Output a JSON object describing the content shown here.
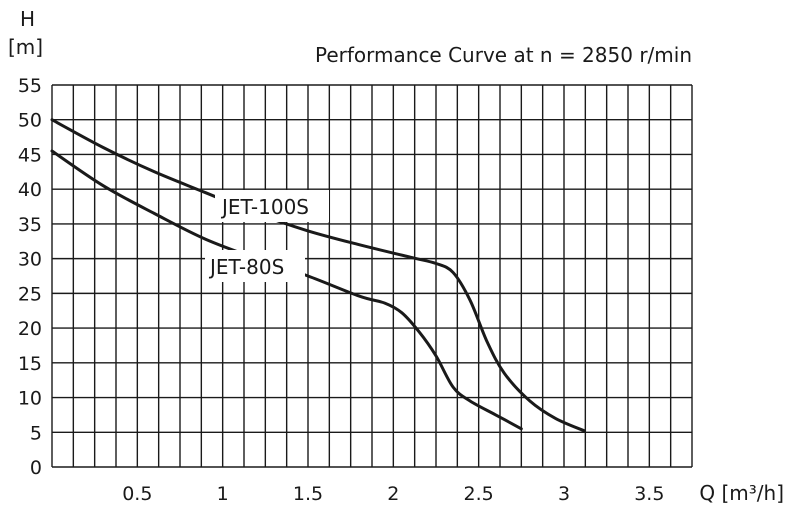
{
  "chart_data": {
    "type": "line",
    "title": "Performance Curve at n = 2850 r/min",
    "ylabel": "H",
    "yunit": "[m]",
    "xlabel": "Q [m³/h]",
    "xlim": [
      0,
      3.75
    ],
    "ylim": [
      0,
      55
    ],
    "xticks": [
      0.5,
      1,
      1.5,
      2,
      2.5,
      3,
      3.5
    ],
    "xtick_labels": [
      "0.5",
      "1",
      "1.5",
      "2",
      "2.5",
      "3",
      "3.5"
    ],
    "yticks": [
      0,
      5,
      10,
      15,
      20,
      25,
      30,
      35,
      40,
      45,
      50,
      55
    ],
    "ytick_labels": [
      "0",
      "5",
      "10",
      "15",
      "20",
      "25",
      "30",
      "35",
      "40",
      "45",
      "50",
      "55"
    ],
    "grid": true,
    "series": [
      {
        "name": "JET-100S",
        "x": [
          0,
          0.3,
          0.6,
          0.9,
          1.2,
          1.5,
          1.8,
          2.1,
          2.25,
          2.35,
          2.45,
          2.55,
          2.65,
          2.8,
          2.95,
          3.12
        ],
        "y": [
          50,
          46,
          42.5,
          39.5,
          36.5,
          34,
          32,
          30.2,
          29.3,
          28,
          24,
          18,
          13.5,
          9.5,
          7,
          5.2
        ]
      },
      {
        "name": "JET-80S",
        "x": [
          0,
          0.3,
          0.6,
          0.9,
          1.2,
          1.5,
          1.8,
          1.95,
          2.05,
          2.15,
          2.25,
          2.35,
          2.45,
          2.6,
          2.75
        ],
        "y": [
          45.5,
          40.5,
          36.5,
          32.8,
          30,
          27.5,
          24.6,
          23.6,
          22.2,
          19.5,
          16,
          11.5,
          9.5,
          7.5,
          5.5
        ]
      }
    ]
  }
}
